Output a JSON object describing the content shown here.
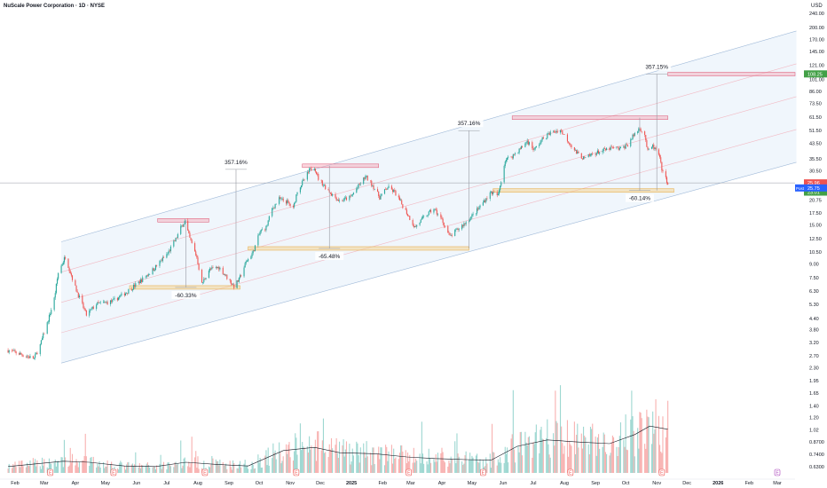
{
  "header": {
    "title": "NuScale Power Corporation · 1D · NYSE",
    "currency": "USD"
  },
  "colors": {
    "up": "#26a69a",
    "down": "#ef5350",
    "channel_fill": "#e3effa",
    "channel_line": "#9fb9d8",
    "resistance": "#f3a3b4",
    "support": "#f3cc7f",
    "post_badge": "#2962ff",
    "last_price_badge": "#ef5350",
    "target_badge": "#43a047"
  },
  "chart_data": {
    "type": "candlestick",
    "symbol": "NuScale Power Corporation",
    "interval": "1D",
    "exchange": "NYSE",
    "y_scale": "log",
    "ylim": [
      0.5,
      250
    ],
    "y_ticks": [
      "240.00",
      "200.00",
      "170.00",
      "145.00",
      "121.00",
      "101.00",
      "86.00",
      "73.50",
      "61.50",
      "51.50",
      "43.50",
      "35.50",
      "30.50",
      "25.96",
      "20.75",
      "17.50",
      "15.00",
      "12.50",
      "10.50",
      "9.00",
      "7.50",
      "6.30",
      "5.30",
      "4.40",
      "3.80",
      "3.20",
      "2.70",
      "2.30",
      "1.95",
      "1.65",
      "1.40",
      "1.20",
      "1.02",
      "0.8700",
      "0.7400",
      "0.6300"
    ],
    "x_ticks": [
      "Feb",
      "Mar",
      "Apr",
      "May",
      "Jun",
      "Jul",
      "Aug",
      "Sep",
      "Oct",
      "Nov",
      "Dec",
      "2025",
      "Feb",
      "Mar",
      "Apr",
      "May",
      "Jun",
      "Jul",
      "Aug",
      "Sep",
      "Oct",
      "Nov",
      "Dec",
      "2026",
      "Feb",
      "Mar"
    ],
    "price_path": [
      [
        "2024-01-25",
        2.9
      ],
      [
        "2024-02-20",
        2.6
      ],
      [
        "2024-02-26",
        3.1
      ],
      [
        "2024-03-05",
        4.3
      ],
      [
        "2024-03-11",
        5.7
      ],
      [
        "2024-03-15",
        8.0
      ],
      [
        "2024-03-22",
        9.9
      ],
      [
        "2024-04-01",
        6.6
      ],
      [
        "2024-04-12",
        4.6
      ],
      [
        "2024-04-22",
        5.3
      ],
      [
        "2024-05-08",
        5.5
      ],
      [
        "2024-05-22",
        6.2
      ],
      [
        "2024-06-05",
        7.2
      ],
      [
        "2024-06-18",
        8.4
      ],
      [
        "2024-07-02",
        10.3
      ],
      [
        "2024-07-10",
        12.4
      ],
      [
        "2024-07-15",
        14.4
      ],
      [
        "2024-07-19",
        15.7
      ],
      [
        "2024-07-24",
        12.5
      ],
      [
        "2024-07-31",
        9.8
      ],
      [
        "2024-08-05",
        6.9
      ],
      [
        "2024-08-12",
        8.3
      ],
      [
        "2024-08-22",
        8.6
      ],
      [
        "2024-09-06",
        6.7
      ],
      [
        "2024-09-11",
        7.3
      ],
      [
        "2024-09-18",
        9.2
      ],
      [
        "2024-09-25",
        10.5
      ],
      [
        "2024-10-02",
        13.7
      ],
      [
        "2024-10-08",
        14.5
      ],
      [
        "2024-10-14",
        18.5
      ],
      [
        "2024-10-21",
        21.0
      ],
      [
        "2024-10-29",
        20.2
      ],
      [
        "2024-11-04",
        18.5
      ],
      [
        "2024-11-08",
        23.5
      ],
      [
        "2024-11-14",
        26.5
      ],
      [
        "2024-11-20",
        30.5
      ],
      [
        "2024-11-25",
        32.2
      ],
      [
        "2024-11-29",
        27.5
      ],
      [
        "2024-12-05",
        25.0
      ],
      [
        "2024-12-12",
        22.5
      ],
      [
        "2024-12-20",
        20.5
      ],
      [
        "2024-12-31",
        21.5
      ],
      [
        "2025-01-07",
        24.5
      ],
      [
        "2025-01-15",
        28.2
      ],
      [
        "2025-01-22",
        25.2
      ],
      [
        "2025-01-29",
        21.5
      ],
      [
        "2025-02-06",
        24.5
      ],
      [
        "2025-02-13",
        23.0
      ],
      [
        "2025-02-24",
        18.0
      ],
      [
        "2025-03-05",
        14.5
      ],
      [
        "2025-03-14",
        16.5
      ],
      [
        "2025-03-24",
        18.5
      ],
      [
        "2025-04-01",
        16.0
      ],
      [
        "2025-04-09",
        12.8
      ],
      [
        "2025-04-16",
        14.0
      ],
      [
        "2025-04-25",
        15.5
      ],
      [
        "2025-05-05",
        17.8
      ],
      [
        "2025-05-13",
        20.5
      ],
      [
        "2025-05-20",
        23.0
      ],
      [
        "2025-05-27",
        22.0
      ],
      [
        "2025-06-03",
        35.0
      ],
      [
        "2025-06-10",
        37.0
      ],
      [
        "2025-06-18",
        40.5
      ],
      [
        "2025-06-25",
        45.0
      ],
      [
        "2025-07-02",
        40.0
      ],
      [
        "2025-07-10",
        46.0
      ],
      [
        "2025-07-18",
        50.0
      ],
      [
        "2025-07-28",
        52.0
      ],
      [
        "2025-08-06",
        44.0
      ],
      [
        "2025-08-13",
        38.5
      ],
      [
        "2025-08-21",
        35.5
      ],
      [
        "2025-08-29",
        38.0
      ],
      [
        "2025-09-08",
        39.5
      ],
      [
        "2025-09-17",
        41.0
      ],
      [
        "2025-09-26",
        40.5
      ],
      [
        "2025-10-03",
        43.0
      ],
      [
        "2025-10-09",
        48.5
      ],
      [
        "2025-10-15",
        53.5
      ],
      [
        "2025-10-20",
        49.0
      ],
      [
        "2025-10-23",
        39.0
      ],
      [
        "2025-10-28",
        42.0
      ],
      [
        "2025-11-03",
        37.5
      ],
      [
        "2025-11-07",
        29.5
      ],
      [
        "2025-11-12",
        25.96
      ]
    ],
    "volume_ma_path": [
      [
        "2024-01-25",
        0.12
      ],
      [
        "2024-03-20",
        0.22
      ],
      [
        "2024-04-15",
        0.2
      ],
      [
        "2024-05-20",
        0.13
      ],
      [
        "2024-06-20",
        0.12
      ],
      [
        "2024-07-20",
        0.2
      ],
      [
        "2024-08-20",
        0.16
      ],
      [
        "2024-09-20",
        0.13
      ],
      [
        "2024-10-25",
        0.42
      ],
      [
        "2024-11-25",
        0.48
      ],
      [
        "2024-12-20",
        0.38
      ],
      [
        "2025-01-25",
        0.36
      ],
      [
        "2025-02-25",
        0.3
      ],
      [
        "2025-03-25",
        0.27
      ],
      [
        "2025-04-25",
        0.25
      ],
      [
        "2025-05-20",
        0.24
      ],
      [
        "2025-06-15",
        0.5
      ],
      [
        "2025-07-15",
        0.62
      ],
      [
        "2025-08-15",
        0.58
      ],
      [
        "2025-09-15",
        0.55
      ],
      [
        "2025-10-10",
        0.72
      ],
      [
        "2025-10-25",
        0.88
      ],
      [
        "2025-11-12",
        0.82
      ]
    ],
    "channel": {
      "line_count": 5,
      "upper_start": [
        "2024-03-18",
        12.0
      ],
      "upper_end": [
        "2026-03-20",
        190.0
      ],
      "lower_start": [
        "2024-03-18",
        2.45
      ],
      "lower_end": [
        "2026-03-20",
        34.0
      ]
    },
    "annotations": [
      {
        "label": "357.16%",
        "kind": "rise",
        "date": "2024-09-08",
        "from": 6.6,
        "to": 31.0
      },
      {
        "label": "-60.33%",
        "kind": "drop",
        "date": "2024-07-20",
        "from": 15.9,
        "to": 6.6
      },
      {
        "label": "-65.48%",
        "kind": "drop",
        "date": "2024-12-10",
        "from": 32.5,
        "to": 11.0
      },
      {
        "label": "357.16%",
        "kind": "rise",
        "date": "2025-04-28",
        "from": 11.0,
        "to": 51.5
      },
      {
        "label": "-60.14%",
        "kind": "drop",
        "date": "2025-10-15",
        "from": 61.0,
        "to": 23.5
      },
      {
        "label": "357.15%",
        "kind": "rise",
        "date": "2025-11-01",
        "from": 23.5,
        "to": 108.0
      }
    ],
    "zones": [
      {
        "kind": "resistance",
        "from": "2024-06-22",
        "to": "2024-08-12",
        "price": 15.9
      },
      {
        "kind": "support",
        "from": "2024-05-25",
        "to": "2024-09-12",
        "price": 6.6
      },
      {
        "kind": "resistance",
        "from": "2024-11-13",
        "to": "2025-01-28",
        "price": 32.5
      },
      {
        "kind": "support",
        "from": "2024-09-20",
        "to": "2025-04-28",
        "price": 11.0
      },
      {
        "kind": "resistance",
        "from": "2025-06-10",
        "to": "2025-11-12",
        "price": 61.0
      },
      {
        "kind": "support",
        "from": "2025-05-22",
        "to": "2025-11-18",
        "price": 23.5
      },
      {
        "kind": "resistance",
        "from": "2025-11-12",
        "to": "2026-03-20",
        "price": 108.0
      }
    ],
    "price_tags": [
      {
        "label": "108.25",
        "price": 108.25,
        "color": "#43a047"
      },
      {
        "label": "25.96",
        "price": 25.96,
        "color": "#ef5350"
      },
      {
        "label": "23.01",
        "price": 23.01,
        "color": "#43a047"
      }
    ],
    "post_tag": {
      "label": "Post",
      "value": "25.75",
      "price": 24.3
    },
    "earnings_markers": [
      {
        "date": "2024-03-07",
        "label": "E"
      },
      {
        "date": "2024-05-09",
        "label": "E"
      },
      {
        "date": "2024-08-08",
        "label": "E"
      },
      {
        "date": "2024-11-07",
        "label": "E"
      },
      {
        "date": "2025-02-27",
        "label": "E"
      },
      {
        "date": "2025-05-12",
        "label": "E"
      },
      {
        "date": "2025-08-07",
        "label": "E"
      },
      {
        "date": "2025-11-06",
        "label": "E"
      },
      {
        "date": "2026-03-01",
        "label": "E"
      }
    ],
    "last_date": "2025-11-12",
    "grid": false,
    "legend": "none"
  }
}
